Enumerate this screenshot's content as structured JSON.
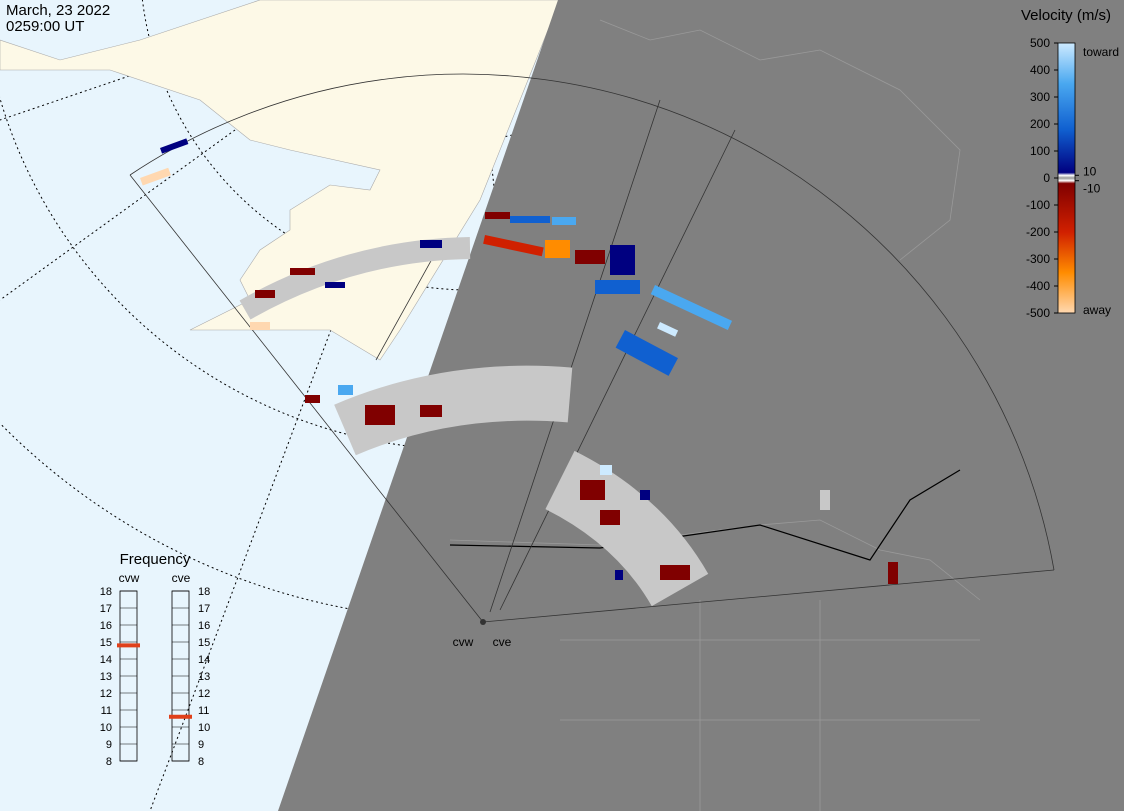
{
  "header": {
    "date": "March, 23 2022",
    "time": "0259:00 UT"
  },
  "velocity_scale": {
    "title": "Velocity (m/s)",
    "lim": [
      -500,
      500
    ],
    "ticks": [
      500,
      400,
      300,
      200,
      100,
      0,
      -100,
      -200,
      -300,
      -400,
      -500
    ],
    "inner_ticks": [
      10,
      -10
    ],
    "top_label": "toward",
    "bottom_label": "away"
  },
  "frequency": {
    "title": "Frequency",
    "lim": [
      8,
      18
    ],
    "ticks": [
      8,
      9,
      10,
      11,
      12,
      13,
      14,
      15,
      16,
      17,
      18
    ],
    "radars": [
      {
        "name": "cvw",
        "value": 14.8,
        "color": "#e0401a"
      },
      {
        "name": "cve",
        "value": 10.6,
        "color": "#e0401a"
      }
    ]
  },
  "radar_sites": [
    "cvw",
    "cve"
  ]
}
